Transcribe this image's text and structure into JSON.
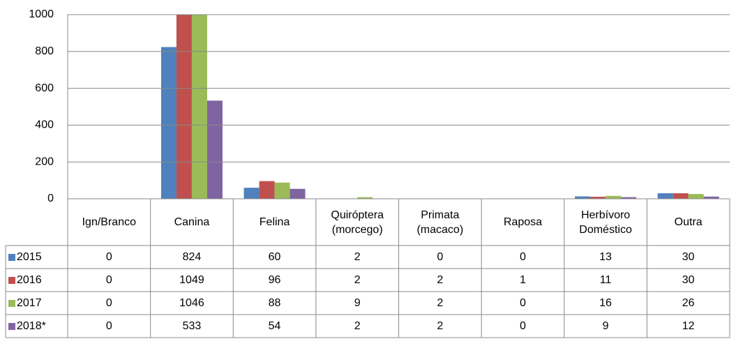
{
  "chart_data": {
    "type": "bar",
    "categories": [
      "Ign/Branco",
      "Canina",
      "Felina",
      "Quiróptera (morcego)",
      "Primata (macaco)",
      "Raposa",
      "Herbívoro Doméstico",
      "Outra"
    ],
    "series": [
      {
        "name": "2015",
        "color": "#4f81bd",
        "values": [
          0,
          824,
          60,
          2,
          0,
          0,
          13,
          30
        ]
      },
      {
        "name": "2016",
        "color": "#c0504d",
        "values": [
          0,
          1049,
          96,
          2,
          2,
          1,
          11,
          30
        ]
      },
      {
        "name": "2017",
        "color": "#9bbb59",
        "values": [
          0,
          1046,
          88,
          9,
          2,
          0,
          16,
          26
        ]
      },
      {
        "name": "2018*",
        "color": "#8064a2",
        "values": [
          0,
          533,
          54,
          2,
          2,
          0,
          9,
          12
        ]
      }
    ],
    "ylim": [
      0,
      1000
    ],
    "yticks": [
      0,
      200,
      400,
      600,
      800,
      1000
    ],
    "grid": true,
    "legend": "table"
  }
}
